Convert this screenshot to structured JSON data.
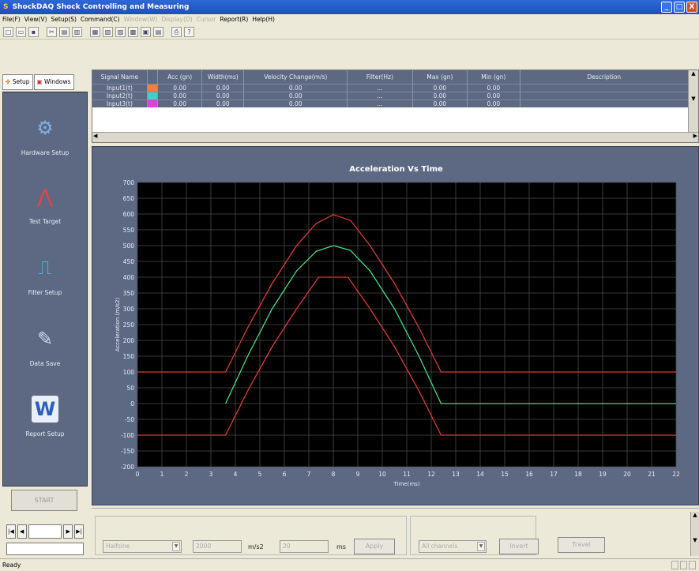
{
  "window": {
    "title": "ShockDAQ  Shock Controlling and Measuring",
    "minimize": "_",
    "maximize": "□",
    "close": "X"
  },
  "menu": [
    "File(F)",
    "View(V)",
    "Setup(S)",
    "Command(C)",
    "Window(W)",
    "Display(D)",
    "Cursor",
    "Report(R)",
    "Help(H)"
  ],
  "menu_disabled": [
    false,
    false,
    false,
    false,
    true,
    true,
    true,
    false,
    false
  ],
  "toolbar_icons": [
    "new-icon",
    "open-icon",
    "save-icon",
    "cut-icon",
    "copy-icon",
    "paste-icon",
    "view1-icon",
    "view2-icon",
    "view3-icon",
    "view4-icon",
    "view5-icon",
    "view6-icon",
    "print-icon",
    "help-icon"
  ],
  "sidebar": {
    "tab_setup": "Setup",
    "tab_windows": "Windows",
    "items": [
      {
        "label": "Hardware Setup",
        "icon": "hardware-icon",
        "glyph": "⚙",
        "color": "#7fb0e8"
      },
      {
        "label": "Test Target",
        "icon": "target-icon",
        "glyph": "⋀",
        "color": "#f04040"
      },
      {
        "label": "Filter Setup",
        "icon": "filter-icon",
        "glyph": "⎍",
        "color": "#40c0e0"
      },
      {
        "label": "Data Save",
        "icon": "data-save-icon",
        "glyph": "✎",
        "color": "#c8d8f0"
      },
      {
        "label": "Report Setup",
        "icon": "word-icon",
        "glyph": "W",
        "color": "#2a5fc0"
      }
    ],
    "start": "START",
    "nav": {
      "first": "|◀",
      "prev": "◀",
      "next": "▶",
      "last": "▶|"
    }
  },
  "signal_table": {
    "columns": [
      "Signal Name",
      "",
      "Acc (gn)",
      "Width(ms)",
      "Velocity Change(m/s)",
      "Filter(Hz)",
      "Max (gn)",
      "Min (gn)",
      "Description"
    ],
    "rows": [
      {
        "name": "Input1(t)",
        "color": "#f08040",
        "acc": "0.00",
        "width": "0.00",
        "vel": "0.00",
        "filter": "...",
        "max": "0.00",
        "min": "0.00",
        "desc": ""
      },
      {
        "name": "Input2(t)",
        "color": "#40d0c8",
        "acc": "0.00",
        "width": "0.00",
        "vel": "0.00",
        "filter": "...",
        "max": "0.00",
        "min": "0.00",
        "desc": ""
      },
      {
        "name": "Input3(t)",
        "color": "#e040e0",
        "acc": "0.00",
        "width": "0.00",
        "vel": "0.00",
        "filter": "...",
        "max": "0.00",
        "min": "0.00",
        "desc": ""
      }
    ]
  },
  "chart_data": {
    "type": "line",
    "title": "Acceleration Vs Time",
    "xlabel": "Time(ms)",
    "ylabel": "Acceleration (m/s2)",
    "xlim": [
      0,
      22
    ],
    "ylim": [
      -200,
      700
    ],
    "xticks": [
      "0",
      "1",
      "2",
      "3",
      "4",
      "5",
      "6",
      "7",
      "8",
      "9",
      "10",
      "11",
      "12",
      "13",
      "14",
      "15",
      "16",
      "17",
      "18",
      "19",
      "20",
      "21",
      "22"
    ],
    "yticks": [
      "700",
      "650",
      "600",
      "550",
      "500",
      "450",
      "400",
      "350",
      "300",
      "250",
      "200",
      "150",
      "100",
      "50",
      "0",
      "-50",
      "-100",
      "-150",
      "-200"
    ],
    "grid": true,
    "series": [
      {
        "color": "#e03838",
        "points": [
          [
            0,
            100
          ],
          [
            3.6,
            100
          ],
          [
            3.6,
            100
          ],
          [
            4.5,
            240
          ],
          [
            5.5,
            380
          ],
          [
            6.5,
            500
          ],
          [
            7.3,
            570
          ],
          [
            8,
            598
          ],
          [
            8.7,
            580
          ],
          [
            9.5,
            500
          ],
          [
            10.5,
            380
          ],
          [
            11.5,
            240
          ],
          [
            12.4,
            100
          ],
          [
            12.4,
            100
          ],
          [
            22,
            100
          ]
        ]
      },
      {
        "color": "#40e080",
        "points": [
          [
            3.6,
            0
          ],
          [
            4.5,
            150
          ],
          [
            5.5,
            300
          ],
          [
            6.5,
            420
          ],
          [
            7.3,
            482
          ],
          [
            8,
            500
          ],
          [
            8.7,
            485
          ],
          [
            9.5,
            420
          ],
          [
            10.5,
            300
          ],
          [
            11.5,
            150
          ],
          [
            12.4,
            0
          ],
          [
            22,
            0
          ]
        ]
      },
      {
        "color": "#e03838",
        "points": [
          [
            0,
            -100
          ],
          [
            3.6,
            -100
          ],
          [
            4.5,
            40
          ],
          [
            5.5,
            180
          ],
          [
            6.5,
            300
          ],
          [
            7.4,
            400
          ],
          [
            8.6,
            400
          ],
          [
            9.5,
            300
          ],
          [
            10.5,
            180
          ],
          [
            11.5,
            40
          ],
          [
            12.4,
            -100
          ],
          [
            22,
            -100
          ]
        ]
      }
    ]
  },
  "bottom": {
    "waveform": "Halfsine",
    "accel_value": "2000",
    "accel_unit": "m/s2",
    "width_value": "20",
    "width_unit": "ms",
    "apply": "Apply",
    "channels": "All channels",
    "invert": "Invert",
    "travel": "Travel"
  },
  "status": "Ready"
}
